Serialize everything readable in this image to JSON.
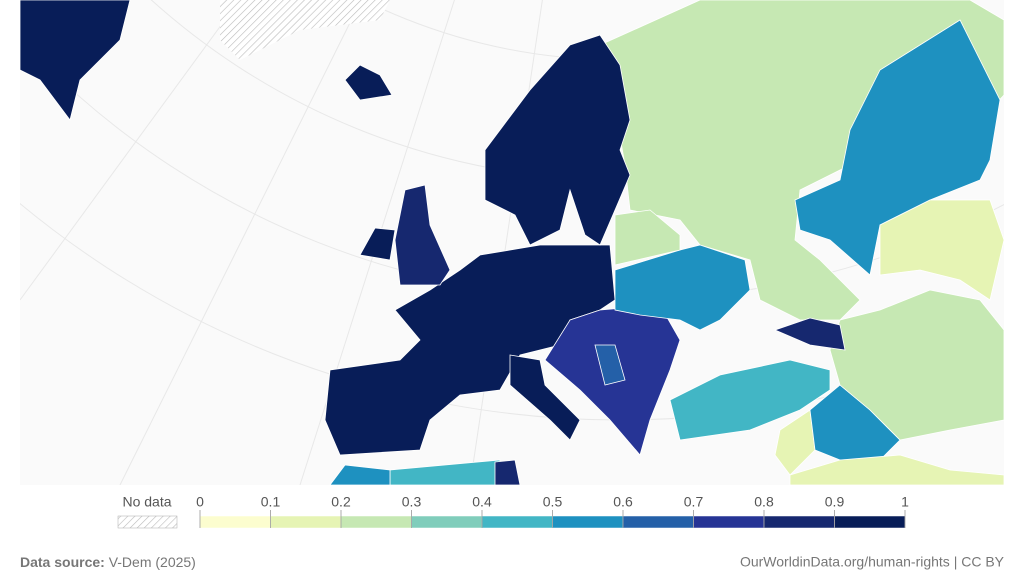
{
  "legend": {
    "no_data_label": "No data",
    "ticks": [
      0,
      0.1,
      0.2,
      0.3,
      0.4,
      0.5,
      0.6,
      0.7,
      0.8,
      0.9,
      1
    ],
    "colors": [
      "#fcfdcf",
      "#e6f4b4",
      "#c6e8b3",
      "#80cdbb",
      "#42b6c5",
      "#1e91c0",
      "#2460a8",
      "#263495",
      "#16286f",
      "#081d58"
    ]
  },
  "map": {
    "regions": [
      0.25,
      0.55,
      0.15,
      0.95,
      0.9,
      0.95,
      0.85,
      0.95,
      0.95,
      0.95,
      0.75,
      0.65,
      0.55,
      0.25,
      0.45,
      0.15,
      0.55,
      0.25,
      0.15,
      0.8,
      0.45,
      0.55,
      0.8
    ]
  },
  "footer": {
    "source_label": "Data source:",
    "source": "V-Dem (2025)",
    "credit": "OurWorldinData.org/human-rights | CC BY"
  }
}
